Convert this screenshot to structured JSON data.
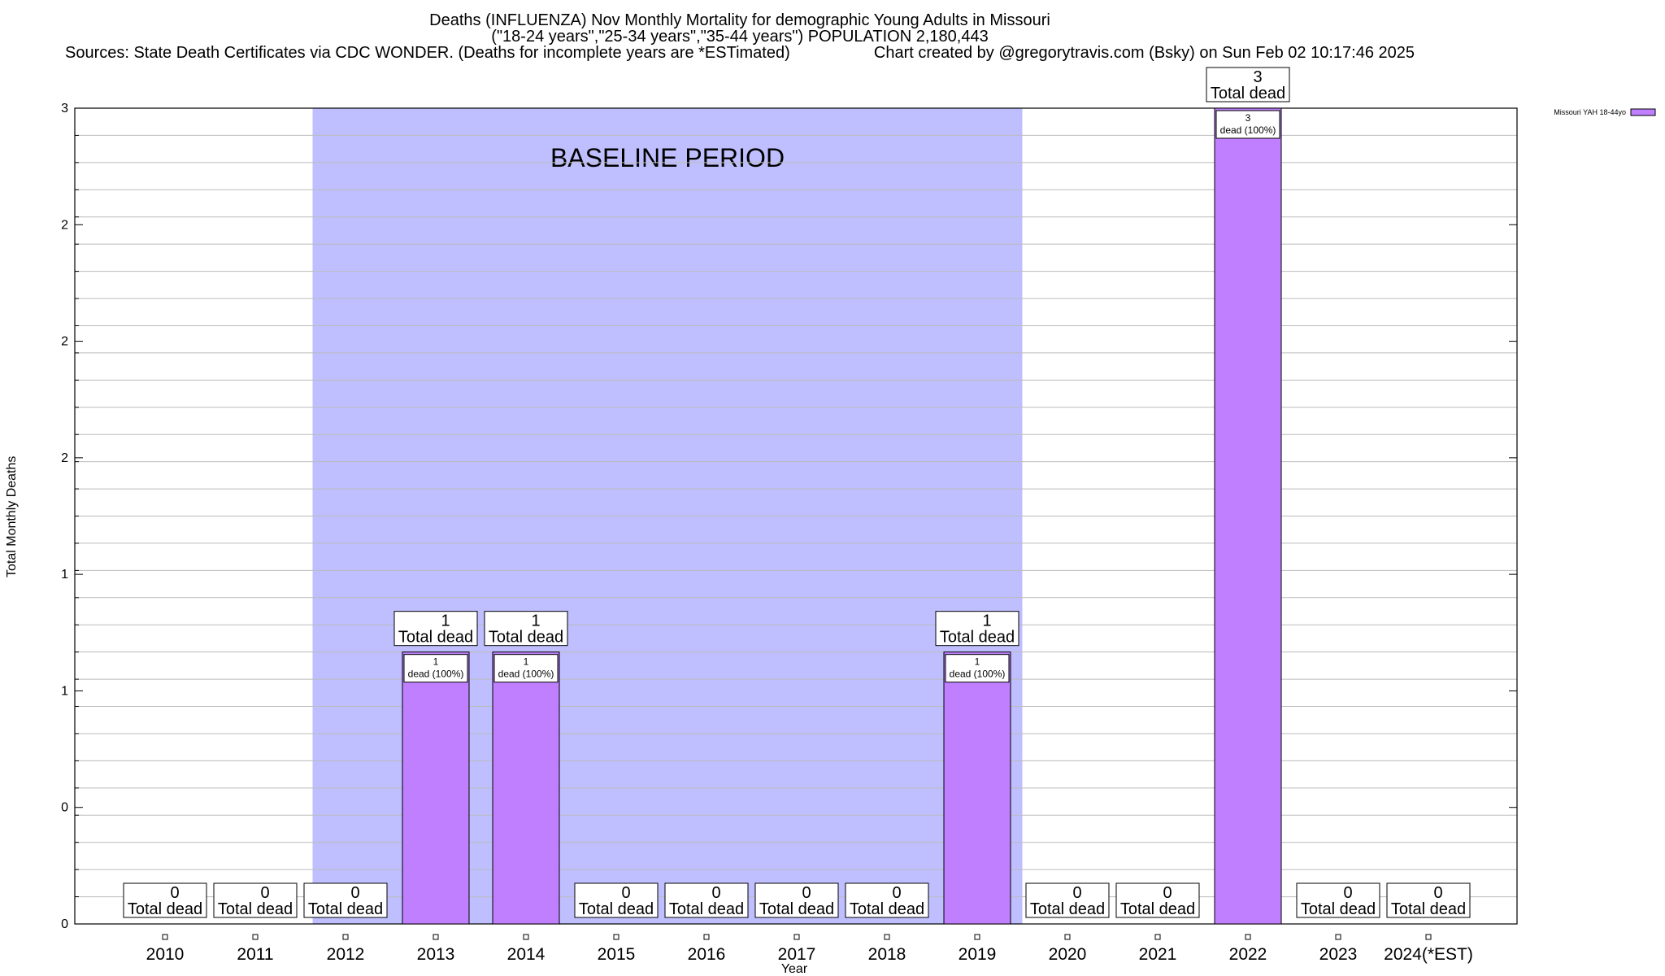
{
  "header": {
    "title": "Deaths (INFLUENZA) Nov Monthly Mortality for demographic Young Adults in Missouri",
    "subtitle": "(\"18-24 years\",\"25-34 years\",\"35-44 years\") POPULATION 2,180,443",
    "sources": "Sources: State Death Certificates via CDC WONDER. (Deaths for incomplete years are *ESTimated)",
    "credit": "Chart created by @gregorytravis.com (Bsky) on Sun Feb 02 10:17:46 2025"
  },
  "chart_data": {
    "type": "bar",
    "title": "Deaths (INFLUENZA) Nov Monthly Mortality for demographic Young Adults in Missouri",
    "xlabel": "Year",
    "ylabel": "Total Monthly Deaths",
    "categories": [
      "2010",
      "2011",
      "2012",
      "2013",
      "2014",
      "2015",
      "2016",
      "2017",
      "2018",
      "2019",
      "2020",
      "2021",
      "2022",
      "2023",
      "2024(*EST)"
    ],
    "series": [
      {
        "name": "Missouri YAH 18-44yo",
        "values": [
          0,
          0,
          0,
          1,
          1,
          0,
          0,
          0,
          0,
          1,
          0,
          0,
          3,
          0,
          0
        ],
        "color": "#bf7fff"
      }
    ],
    "total_labels": [
      "0",
      "0",
      "0",
      "1",
      "1",
      "0",
      "0",
      "0",
      "0",
      "1",
      "0",
      "0",
      "3",
      "0",
      "0"
    ],
    "total_suffix": "Total dead",
    "segment_labels": [
      "",
      "",
      "",
      "1",
      "1",
      "",
      "",
      "",
      "",
      "1",
      "",
      "",
      "3",
      "",
      ""
    ],
    "segment_suffix": "dead (100%)",
    "ylim": [
      0,
      3
    ],
    "y_tick_labels": [
      "0",
      "0",
      "1",
      "1",
      "2",
      "2",
      "2",
      "3"
    ],
    "grid": true,
    "baseline_period": {
      "label": "BASELINE PERIOD",
      "from": "2012",
      "to": "2019",
      "color": "#bfbfff"
    },
    "legend_position": "top-right"
  }
}
